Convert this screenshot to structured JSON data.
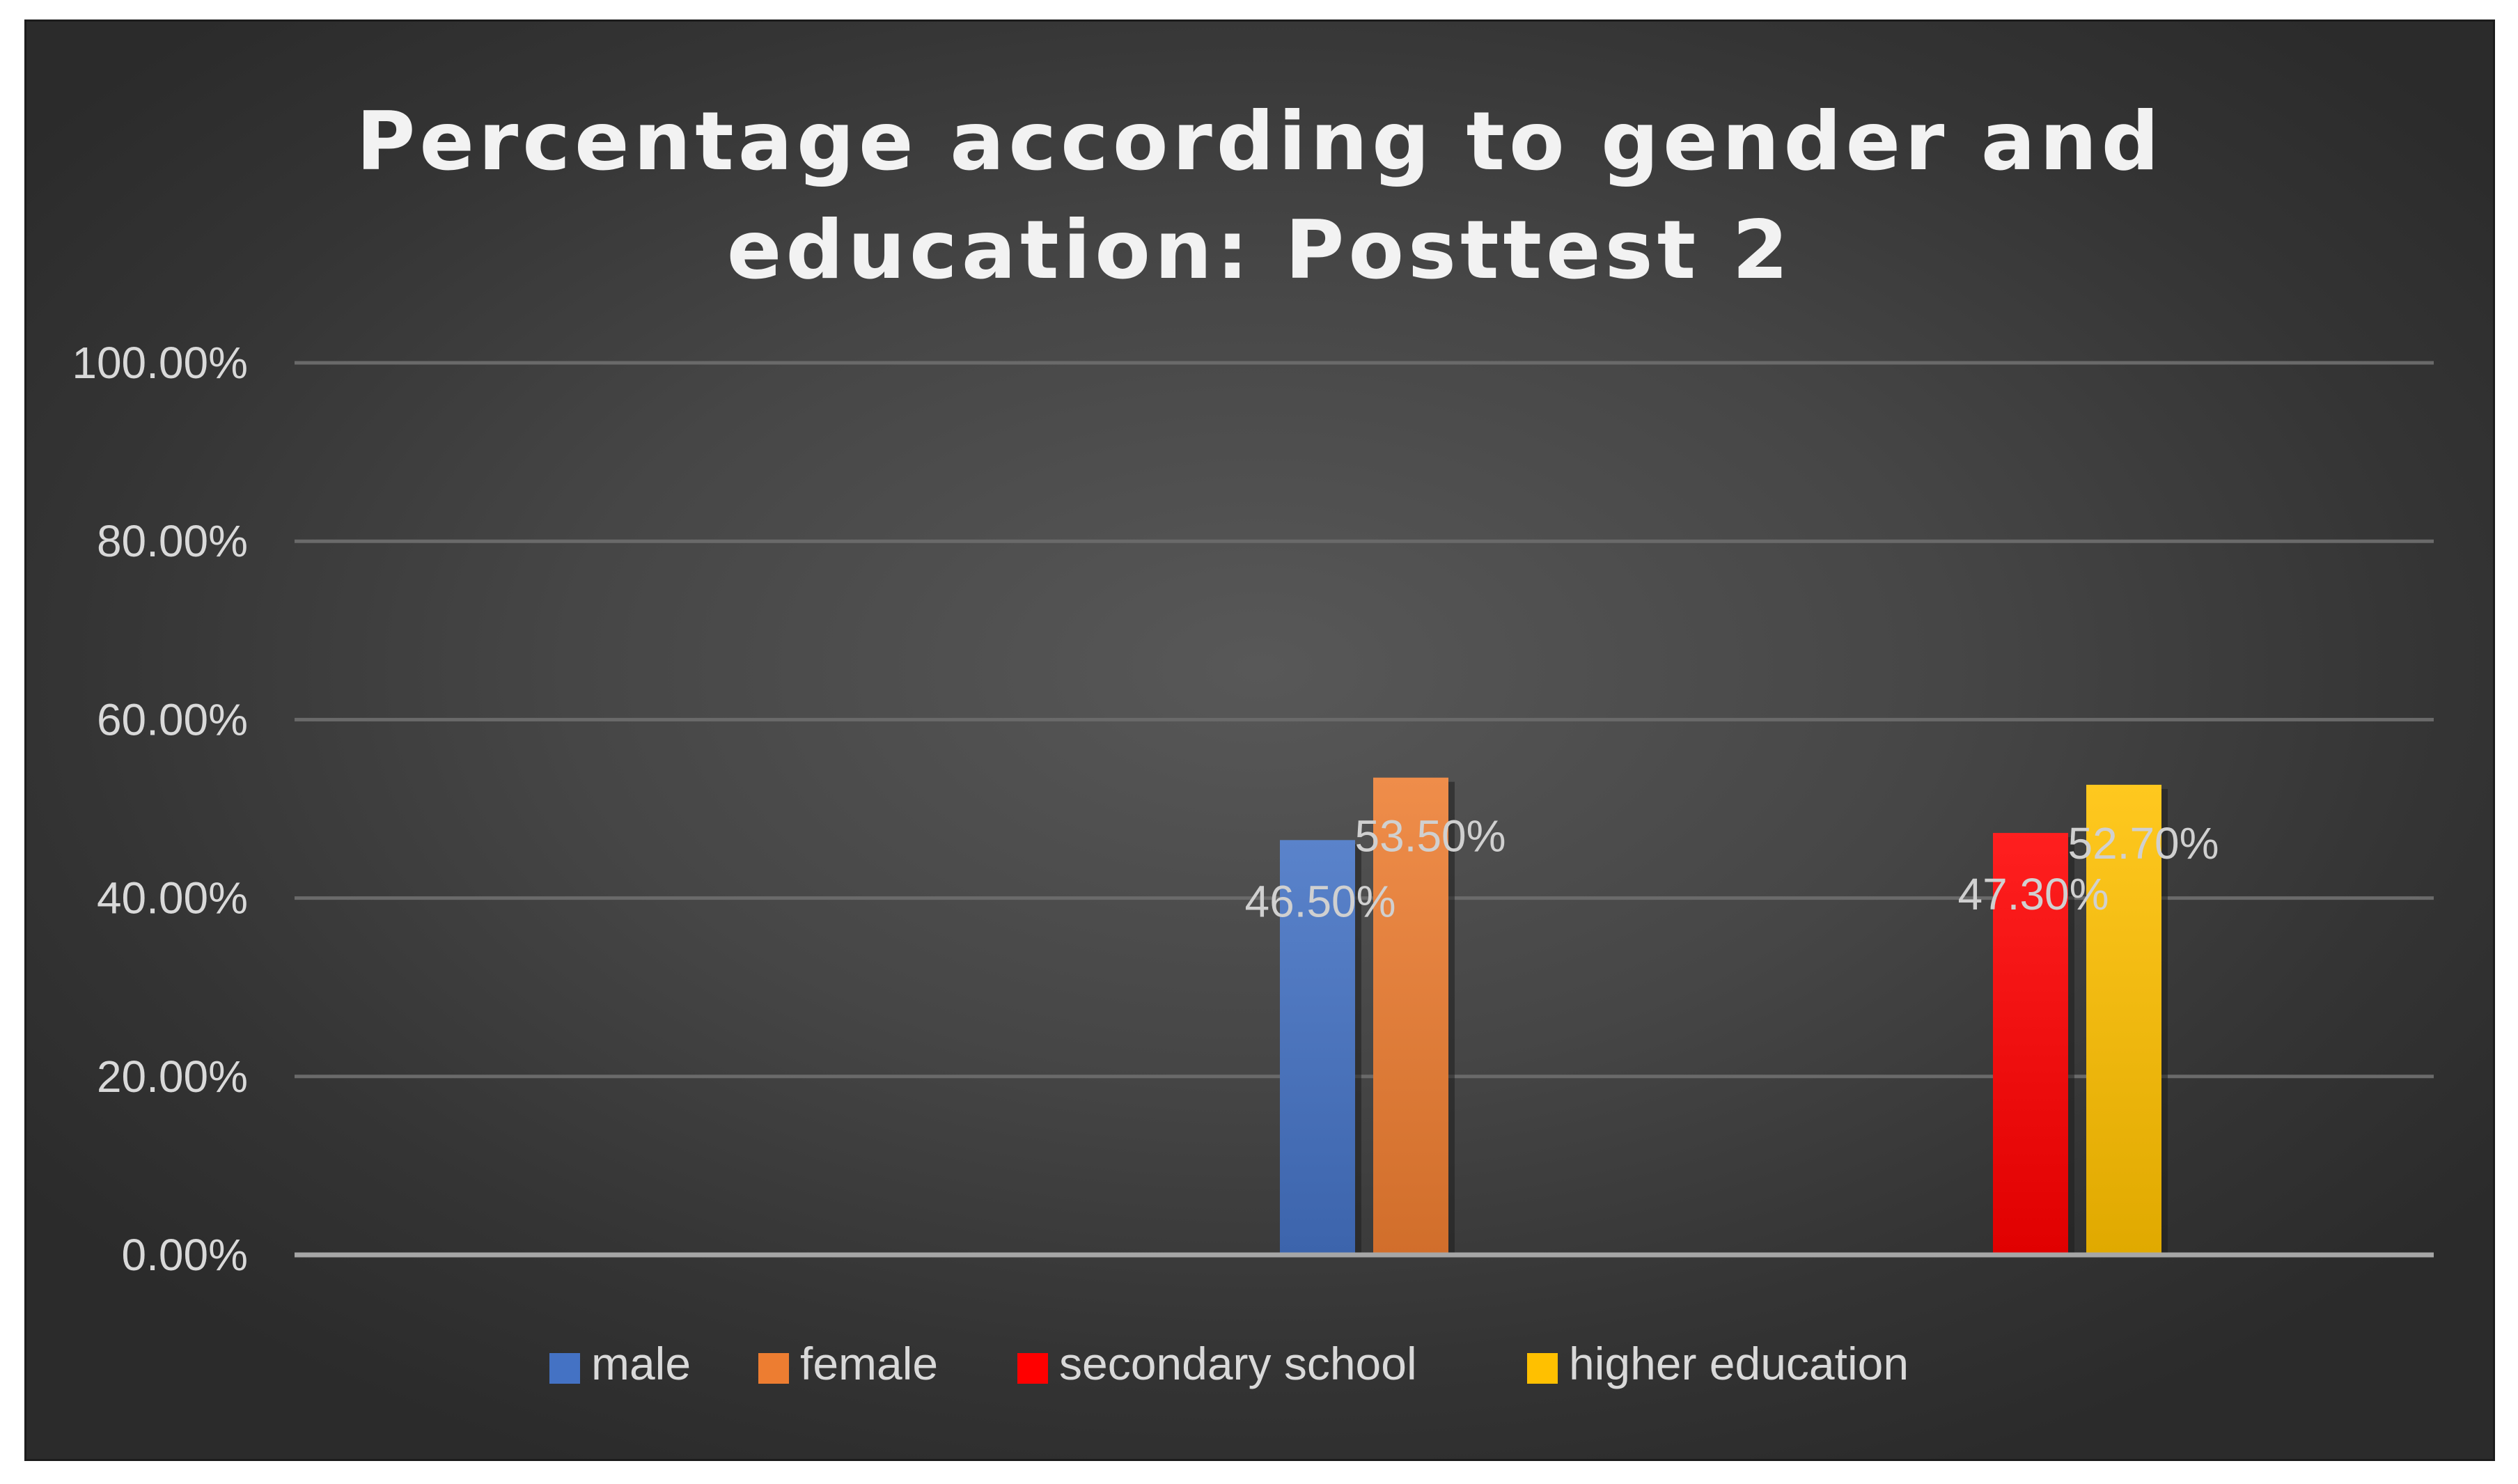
{
  "chart_data": {
    "type": "bar",
    "title": "Percentage according to gender and education: Posttest 2",
    "title_lines": [
      "Percentage according to gender and",
      "education: Posttest 2"
    ],
    "xlabel": "",
    "ylabel": "",
    "ylim": [
      0,
      100
    ],
    "y_ticks": [
      0,
      20,
      40,
      60,
      80,
      100
    ],
    "y_tick_labels": [
      "0.00%",
      "20.00%",
      "40.00%",
      "60.00%",
      "80.00%",
      "100.00%"
    ],
    "grid": true,
    "legend_position": "bottom",
    "groups": [
      "",
      "",
      ""
    ],
    "series": [
      {
        "name": "male",
        "color": "#4472C4",
        "group": 1,
        "value": 46.5,
        "label": "46.50%"
      },
      {
        "name": "female",
        "color": "#ED7D31",
        "group": 1,
        "value": 53.5,
        "label": "53.50%"
      },
      {
        "name": "secondary school",
        "color": "#FF0000",
        "group": 2,
        "value": 47.3,
        "label": "47.30%"
      },
      {
        "name": "higher education",
        "color": "#FFC000",
        "group": 2,
        "value": 52.7,
        "label": "52.70%"
      }
    ]
  }
}
